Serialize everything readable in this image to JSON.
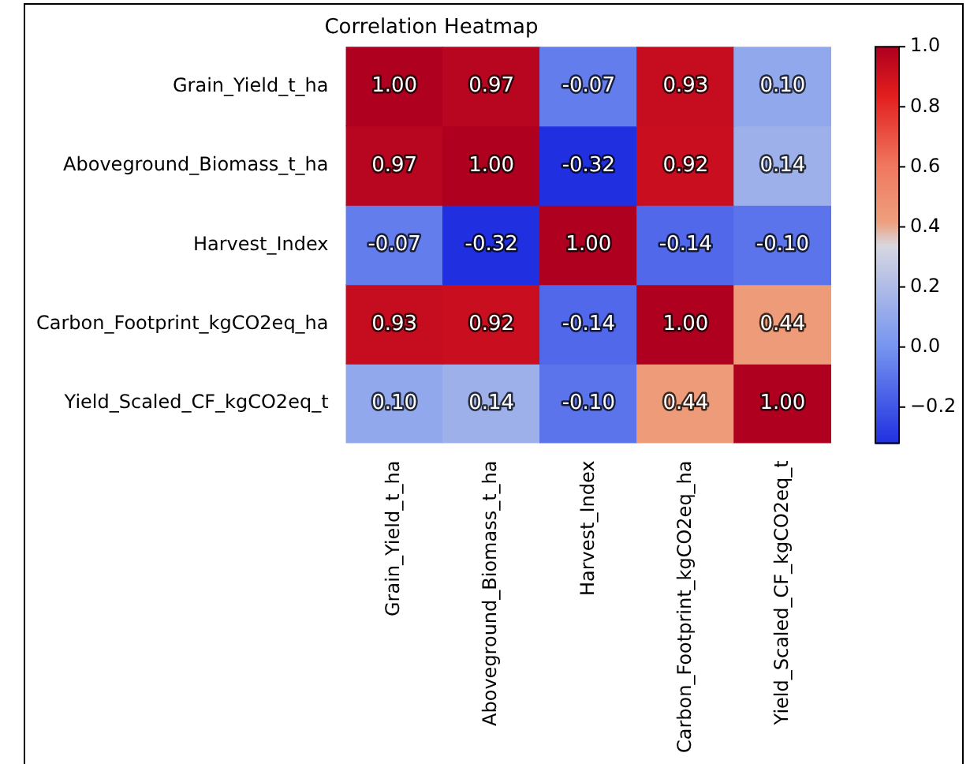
{
  "chart_data": {
    "type": "heatmap",
    "title": "Correlation Heatmap",
    "categories": [
      "Grain_Yield_t_ha",
      "Aboveground_Biomass_t_ha",
      "Harvest_Index",
      "Carbon_Footprint_kgCO2eq_ha",
      "Yield_Scaled_CF_kgCO2eq_t"
    ],
    "y_categories": [
      "Grain_Yield_t_ha",
      "Aboveground_Biomass_t_ha",
      "Harvest_Index",
      "Carbon_Footprint_kgCO2eq_ha",
      "Yield_Scaled_CF_kgCO2eq_t"
    ],
    "cells": [
      [
        1.0,
        0.97,
        -0.07,
        0.93,
        0.1
      ],
      [
        0.97,
        1.0,
        -0.32,
        0.92,
        0.14
      ],
      [
        -0.07,
        -0.32,
        1.0,
        -0.14,
        -0.1
      ],
      [
        0.93,
        0.92,
        -0.14,
        1.0,
        0.44
      ],
      [
        0.1,
        0.14,
        -0.1,
        0.44,
        1.0
      ]
    ],
    "cell_labels": [
      [
        "1.00",
        "0.97",
        "-0.07",
        "0.93",
        "0.10"
      ],
      [
        "0.97",
        "1.00",
        "-0.32",
        "0.92",
        "0.14"
      ],
      [
        "-0.07",
        "-0.32",
        "1.00",
        "-0.14",
        "-0.10"
      ],
      [
        "0.93",
        "0.92",
        "-0.14",
        "1.00",
        "0.44"
      ],
      [
        "0.10",
        "0.14",
        "-0.10",
        "0.44",
        "1.00"
      ]
    ],
    "clim": [
      -0.32,
      1.0
    ],
    "cticks": [
      {
        "value": -0.2,
        "label": "−0.2"
      },
      {
        "value": 0.0,
        "label": "0.0"
      },
      {
        "value": 0.2,
        "label": "0.2"
      },
      {
        "value": 0.4,
        "label": "0.4"
      },
      {
        "value": 0.6,
        "label": "0.6"
      },
      {
        "value": 0.8,
        "label": "0.8"
      },
      {
        "value": 1.0,
        "label": "1.0"
      }
    ]
  }
}
